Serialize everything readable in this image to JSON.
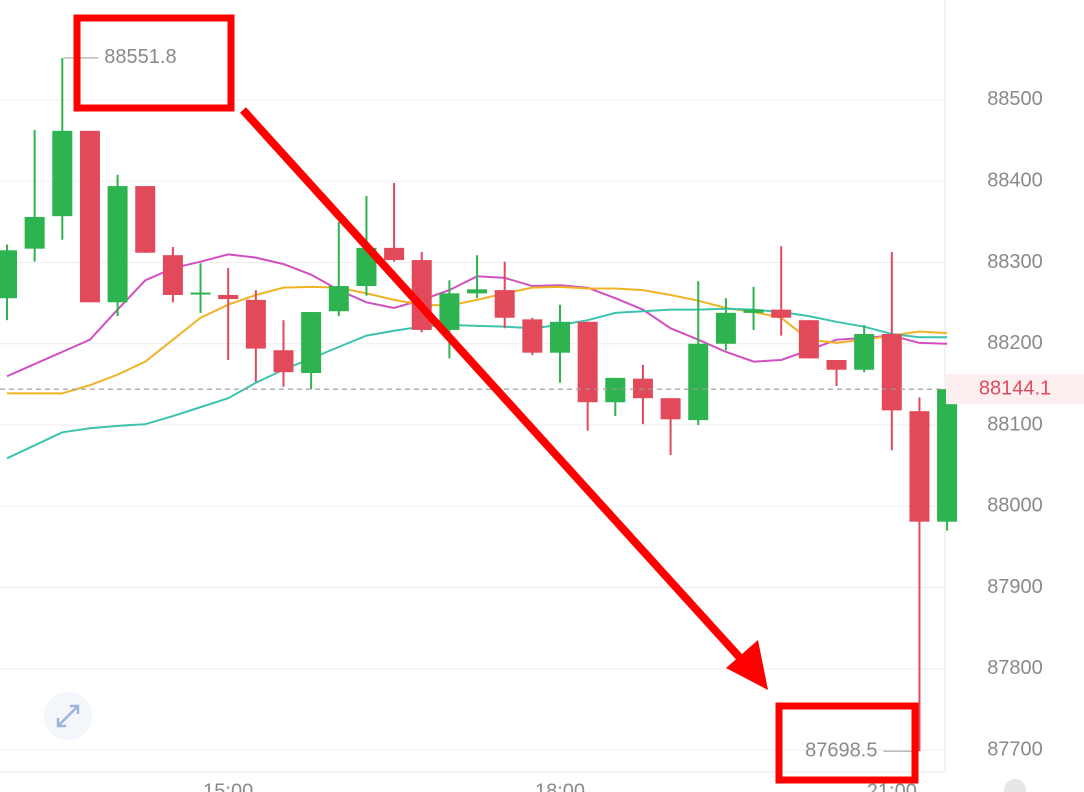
{
  "chart_data": {
    "type": "candlestick",
    "categories": [
      null,
      null,
      null,
      null,
      null,
      null,
      null,
      null,
      "15:00",
      null,
      null,
      null,
      null,
      null,
      null,
      null,
      null,
      null,
      null,
      null,
      "18:00",
      null,
      null,
      null,
      null,
      null,
      null,
      null,
      null,
      null,
      null,
      null,
      "21:00",
      null,
      null
    ],
    "open": [
      88256,
      88317,
      88357,
      88462,
      88251,
      88394,
      88309,
      88262,
      88260,
      88254,
      88192,
      88164,
      88240,
      88271,
      88318,
      88303,
      88217,
      88262,
      88266,
      88230,
      88189,
      88227,
      88128,
      88157,
      88133,
      88106,
      88200,
      88238,
      88242,
      88229,
      88180,
      88168,
      88212,
      88117,
      87981
    ],
    "high": [
      88322,
      88463,
      88551.8,
      88462,
      88408,
      88394,
      88319,
      88299,
      88293,
      88266,
      88229,
      88239,
      88350,
      88382,
      88398,
      88313,
      88278,
      88309,
      88301,
      88232,
      88248,
      88227,
      88158,
      88174,
      88133,
      88277,
      88256,
      88270,
      88320,
      88229,
      88180,
      88223,
      88313,
      88134,
      88152
    ],
    "low": [
      88229,
      88301,
      88328,
      88251,
      88234,
      88312,
      88251,
      88238,
      88180,
      88153,
      88147,
      88144,
      88234,
      88259,
      88301,
      88214,
      88182,
      88256,
      88219,
      88186,
      88152,
      88093,
      88111,
      88101,
      88063,
      88100,
      88192,
      88217,
      88210,
      88182,
      88148,
      88165,
      88069,
      87698.5,
      87970
    ],
    "close": [
      88315,
      88356,
      88462,
      88251,
      88394,
      88312,
      88260,
      88263,
      88255,
      88194,
      88165,
      88239,
      88271,
      88318,
      88303,
      88217,
      88262,
      88267,
      88232,
      88189,
      88227,
      88128,
      88158,
      88133,
      88107,
      88200,
      88238,
      88242,
      88232,
      88182,
      88168,
      88212,
      88118,
      87981,
      88144.1
    ],
    "up_color": "#2db34f",
    "down_color": "#e24a5c",
    "series": [
      {
        "color": "#d24fc0",
        "values": [
          88160,
          88175,
          88190,
          88205,
          88242,
          88278,
          88293,
          88301,
          88310,
          88306,
          88298,
          88285,
          88266,
          88251,
          88244,
          88254,
          88266,
          88283,
          88281,
          88271,
          88272,
          88269,
          88256,
          88242,
          88219,
          88205,
          88190,
          88178,
          88180,
          88192,
          88205,
          88207,
          88210,
          88201,
          88200
        ]
      },
      {
        "color": "#efb326",
        "values": [
          88139,
          88139,
          88139,
          88149,
          88162,
          88178,
          88205,
          88232,
          88248,
          88260,
          88269,
          88270,
          88269,
          88262,
          88254,
          88248,
          88247,
          88254,
          88262,
          88269,
          88270,
          88268,
          88268,
          88266,
          88260,
          88253,
          88244,
          88239,
          88232,
          88205,
          88201,
          88205,
          88210,
          88215,
          88213
        ]
      },
      {
        "color": "#3cc3b0",
        "values": [
          88059,
          88075,
          88091,
          88096,
          88099,
          88101,
          88111,
          88122,
          88133,
          88152,
          88168,
          88182,
          88196,
          88210,
          88216,
          88221,
          88223,
          88222,
          88221,
          88219,
          88223,
          88229,
          88238,
          88240,
          88242,
          88242,
          88243,
          88242,
          88239,
          88234,
          88227,
          88221,
          88212,
          88208,
          88208
        ]
      }
    ],
    "ylim": [
      87673,
      88623
    ],
    "yticks": [
      87700,
      87800,
      87900,
      88000,
      88100,
      88200,
      88300,
      88400,
      88500
    ],
    "grid": true
  }
}
